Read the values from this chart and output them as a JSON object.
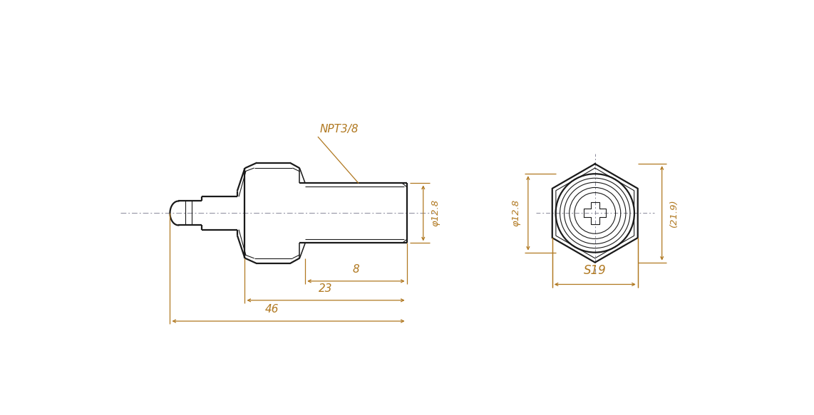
{
  "bg_color": "#ffffff",
  "line_color": "#1a1a1a",
  "dim_color": "#b07820",
  "fig_width": 11.42,
  "fig_height": 5.83,
  "annotations": {
    "NPT38": "NPT3/8",
    "phi128": "φ12.8",
    "dim8": "8",
    "dim23": "23",
    "dim46": "46",
    "S19": "S19",
    "dim219": "(21.9)"
  }
}
